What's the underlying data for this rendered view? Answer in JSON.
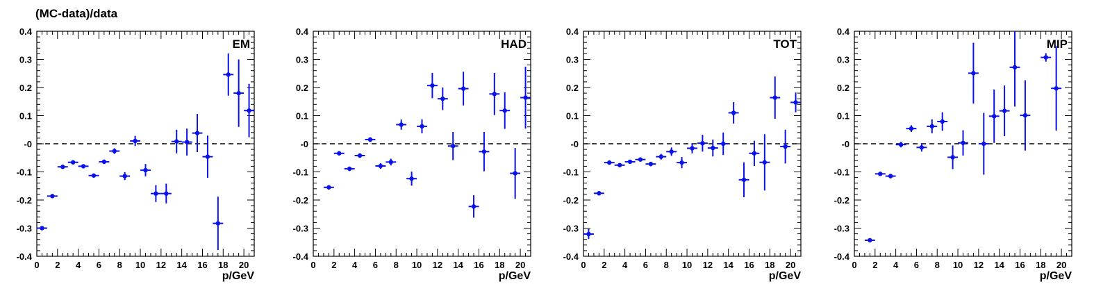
{
  "figure": {
    "ylabel": "(MC-data)/data"
  },
  "chart_data": [
    {
      "type": "scatter",
      "label": "EM",
      "xlabel": "p/GeV",
      "xlim": [
        0,
        21
      ],
      "ylim": [
        -0.4,
        0.4
      ],
      "xticks": [
        0,
        2,
        4,
        6,
        8,
        10,
        12,
        14,
        16,
        18,
        20
      ],
      "yticks": [
        -0.4,
        -0.3,
        -0.2,
        -0.1,
        0,
        0.1,
        0.2,
        0.3,
        0.4
      ],
      "ytick_labels": [
        "-0.4",
        "-0.3",
        "-0.2",
        "-0.1",
        "-0",
        "0.1",
        "0.2",
        "0.3",
        "0.4"
      ],
      "reference_line": 0,
      "color": "#0a12e6",
      "points": [
        {
          "x": 0.5,
          "y": -0.3,
          "err": 0.006
        },
        {
          "x": 1.5,
          "y": -0.186,
          "err": 0.006
        },
        {
          "x": 2.5,
          "y": -0.082,
          "err": 0.007
        },
        {
          "x": 3.5,
          "y": -0.066,
          "err": 0.007
        },
        {
          "x": 4.5,
          "y": -0.08,
          "err": 0.007
        },
        {
          "x": 5.5,
          "y": -0.113,
          "err": 0.007
        },
        {
          "x": 6.5,
          "y": -0.064,
          "err": 0.008
        },
        {
          "x": 7.5,
          "y": -0.026,
          "err": 0.01
        },
        {
          "x": 8.5,
          "y": -0.115,
          "err": 0.014
        },
        {
          "x": 9.5,
          "y": 0.01,
          "err": 0.018
        },
        {
          "x": 10.5,
          "y": -0.094,
          "err": 0.022
        },
        {
          "x": 11.5,
          "y": -0.177,
          "err": 0.03
        },
        {
          "x": 12.5,
          "y": -0.177,
          "err": 0.035
        },
        {
          "x": 13.5,
          "y": 0.008,
          "err": 0.042
        },
        {
          "x": 14.5,
          "y": 0.006,
          "err": 0.048
        },
        {
          "x": 15.5,
          "y": 0.038,
          "err": 0.068
        },
        {
          "x": 16.5,
          "y": -0.046,
          "err": 0.075
        },
        {
          "x": 17.5,
          "y": -0.283,
          "err": 0.095
        },
        {
          "x": 18.5,
          "y": 0.246,
          "err": 0.075
        },
        {
          "x": 19.5,
          "y": 0.18,
          "err": 0.12
        },
        {
          "x": 20.5,
          "y": 0.118,
          "err": 0.095
        }
      ]
    },
    {
      "type": "scatter",
      "label": "HAD",
      "xlabel": "p/GeV",
      "xlim": [
        0,
        21
      ],
      "ylim": [
        -0.4,
        0.4
      ],
      "xticks": [
        0,
        2,
        4,
        6,
        8,
        10,
        12,
        14,
        16,
        18,
        20
      ],
      "yticks": [
        -0.4,
        -0.3,
        -0.2,
        -0.1,
        0,
        0.1,
        0.2,
        0.3,
        0.4
      ],
      "ytick_labels": [
        "-0.4",
        "-0.3",
        "-0.2",
        "-0.1",
        "-0",
        "0.1",
        "0.2",
        "0.3",
        "0.4"
      ],
      "reference_line": 0,
      "color": "#0a12e6",
      "points": [
        {
          "x": 1.5,
          "y": -0.155,
          "err": 0.008
        },
        {
          "x": 2.5,
          "y": -0.034,
          "err": 0.008
        },
        {
          "x": 3.5,
          "y": -0.089,
          "err": 0.008
        },
        {
          "x": 4.5,
          "y": -0.042,
          "err": 0.008
        },
        {
          "x": 5.5,
          "y": 0.015,
          "err": 0.008
        },
        {
          "x": 6.5,
          "y": -0.079,
          "err": 0.01
        },
        {
          "x": 7.5,
          "y": -0.065,
          "err": 0.012
        },
        {
          "x": 8.5,
          "y": 0.068,
          "err": 0.018
        },
        {
          "x": 9.5,
          "y": -0.124,
          "err": 0.025
        },
        {
          "x": 10.5,
          "y": 0.062,
          "err": 0.025
        },
        {
          "x": 11.5,
          "y": 0.207,
          "err": 0.045
        },
        {
          "x": 12.5,
          "y": 0.16,
          "err": 0.04
        },
        {
          "x": 13.5,
          "y": -0.008,
          "err": 0.05
        },
        {
          "x": 14.5,
          "y": 0.196,
          "err": 0.06
        },
        {
          "x": 15.5,
          "y": -0.223,
          "err": 0.04
        },
        {
          "x": 16.5,
          "y": -0.028,
          "err": 0.07
        },
        {
          "x": 17.5,
          "y": 0.177,
          "err": 0.075
        },
        {
          "x": 18.5,
          "y": 0.118,
          "err": 0.065
        },
        {
          "x": 19.5,
          "y": -0.105,
          "err": 0.09
        },
        {
          "x": 20.5,
          "y": 0.164,
          "err": 0.11
        }
      ]
    },
    {
      "type": "scatter",
      "label": "TOT",
      "xlabel": "p/GeV",
      "xlim": [
        0,
        21
      ],
      "ylim": [
        -0.4,
        0.4
      ],
      "xticks": [
        0,
        2,
        4,
        6,
        8,
        10,
        12,
        14,
        16,
        18,
        20
      ],
      "yticks": [
        -0.4,
        -0.3,
        -0.2,
        -0.1,
        0,
        0.1,
        0.2,
        0.3,
        0.4
      ],
      "ytick_labels": [
        "-0.4",
        "-0.3",
        "-0.2",
        "-0.1",
        "-0",
        "0.1",
        "0.2",
        "0.3",
        "0.4"
      ],
      "reference_line": 0,
      "color": "#0a12e6",
      "points": [
        {
          "x": 0.5,
          "y": -0.321,
          "err": 0.018
        },
        {
          "x": 1.5,
          "y": -0.176,
          "err": 0.008
        },
        {
          "x": 2.5,
          "y": -0.067,
          "err": 0.007
        },
        {
          "x": 3.5,
          "y": -0.076,
          "err": 0.007
        },
        {
          "x": 4.5,
          "y": -0.064,
          "err": 0.007
        },
        {
          "x": 5.5,
          "y": -0.056,
          "err": 0.007
        },
        {
          "x": 6.5,
          "y": -0.072,
          "err": 0.008
        },
        {
          "x": 7.5,
          "y": -0.046,
          "err": 0.01
        },
        {
          "x": 8.5,
          "y": -0.028,
          "err": 0.015
        },
        {
          "x": 9.5,
          "y": -0.067,
          "err": 0.02
        },
        {
          "x": 10.5,
          "y": -0.016,
          "err": 0.018
        },
        {
          "x": 11.5,
          "y": 0.002,
          "err": 0.03
        },
        {
          "x": 12.5,
          "y": -0.015,
          "err": 0.03
        },
        {
          "x": 13.5,
          "y": 0.0,
          "err": 0.04
        },
        {
          "x": 14.5,
          "y": 0.11,
          "err": 0.038
        },
        {
          "x": 15.5,
          "y": -0.128,
          "err": 0.062
        },
        {
          "x": 16.5,
          "y": -0.034,
          "err": 0.045
        },
        {
          "x": 17.5,
          "y": -0.066,
          "err": 0.1
        },
        {
          "x": 18.5,
          "y": 0.164,
          "err": 0.075
        },
        {
          "x": 19.5,
          "y": -0.01,
          "err": 0.06
        },
        {
          "x": 20.5,
          "y": 0.147,
          "err": 0.035
        }
      ]
    },
    {
      "type": "scatter",
      "label": "MIP",
      "xlabel": "p/GeV",
      "xlim": [
        0,
        21
      ],
      "ylim": [
        -0.4,
        0.4
      ],
      "xticks": [
        0,
        2,
        4,
        6,
        8,
        10,
        12,
        14,
        16,
        18,
        20
      ],
      "yticks": [
        -0.4,
        -0.3,
        -0.2,
        -0.1,
        0,
        0.1,
        0.2,
        0.3,
        0.4
      ],
      "ytick_labels": [
        "-0.4",
        "-0.3",
        "-0.2",
        "-0.1",
        "-0",
        "0.1",
        "0.2",
        "0.3",
        "0.4"
      ],
      "reference_line": 0,
      "color": "#0a12e6",
      "points": [
        {
          "x": 1.5,
          "y": -0.343,
          "err": 0.007
        },
        {
          "x": 2.5,
          "y": -0.107,
          "err": 0.007
        },
        {
          "x": 3.5,
          "y": -0.115,
          "err": 0.008
        },
        {
          "x": 4.5,
          "y": -0.003,
          "err": 0.01
        },
        {
          "x": 5.5,
          "y": 0.054,
          "err": 0.012
        },
        {
          "x": 6.5,
          "y": -0.013,
          "err": 0.015
        },
        {
          "x": 7.5,
          "y": 0.062,
          "err": 0.025
        },
        {
          "x": 8.5,
          "y": 0.079,
          "err": 0.033
        },
        {
          "x": 9.5,
          "y": -0.048,
          "err": 0.042
        },
        {
          "x": 10.5,
          "y": 0.003,
          "err": 0.045
        },
        {
          "x": 11.5,
          "y": 0.251,
          "err": 0.108
        },
        {
          "x": 12.5,
          "y": 0.0,
          "err": 0.11
        },
        {
          "x": 13.5,
          "y": 0.098,
          "err": 0.095
        },
        {
          "x": 14.5,
          "y": 0.117,
          "err": 0.09
        },
        {
          "x": 15.5,
          "y": 0.272,
          "err": 0.14
        },
        {
          "x": 16.5,
          "y": 0.101,
          "err": 0.125
        },
        {
          "x": 18.5,
          "y": 0.307,
          "err": 0.015
        },
        {
          "x": 19.5,
          "y": 0.197,
          "err": 0.15
        }
      ]
    }
  ]
}
